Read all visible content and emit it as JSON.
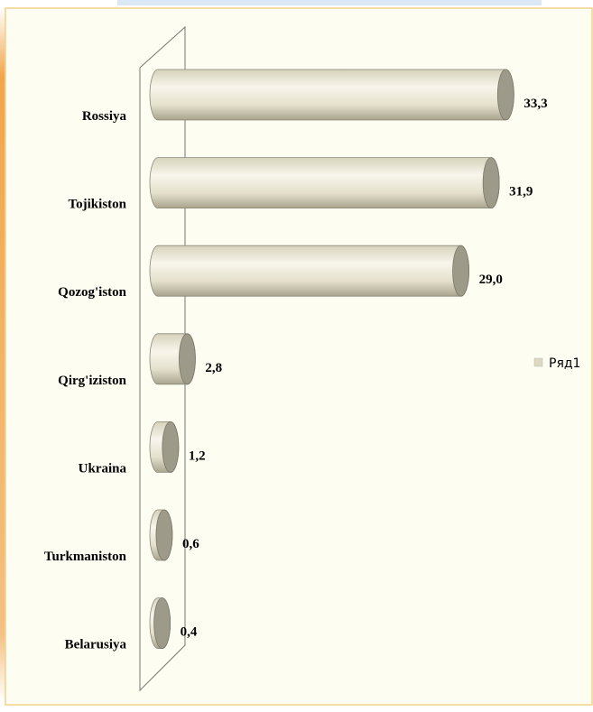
{
  "chart_data": {
    "type": "bar",
    "orientation": "horizontal",
    "categories": [
      "Rossiya",
      "Tojikiston",
      "Qozog'iston",
      "Qirg'iziston",
      "Ukraina",
      "Turkmaniston",
      "Belarusiya"
    ],
    "series": [
      {
        "name": "Ряд1",
        "color": "#dcd8c2",
        "values": [
          33.3,
          31.9,
          29.0,
          2.8,
          1.2,
          0.6,
          0.4
        ],
        "value_labels": [
          "33,3",
          "31,9",
          "29,0",
          "2,8",
          "1,2",
          "0,6",
          "0,4"
        ]
      }
    ],
    "xlim": [
      0,
      35
    ],
    "legend": "right"
  }
}
